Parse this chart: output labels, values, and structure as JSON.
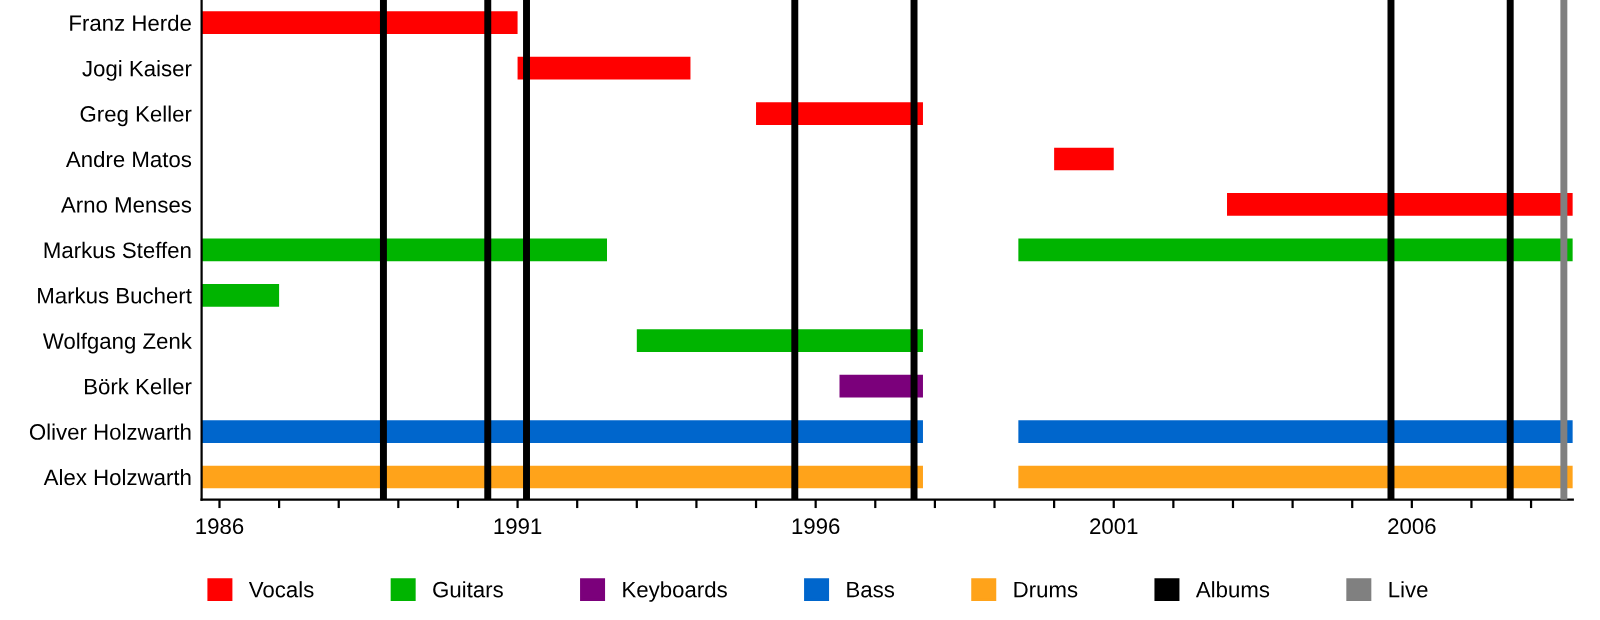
{
  "chart_data": {
    "type": "bar",
    "orientation": "horizontal",
    "categories": [
      "Franz Herde",
      "Jogi Kaiser",
      "Greg Keller",
      "Andre Matos",
      "Arno Menses",
      "Markus Steffen",
      "Markus Buchert",
      "Wolfgang Zenk",
      "Börk Keller",
      "Oliver Holzwarth",
      "Alex Holzwarth"
    ],
    "series": [
      {
        "name": "Vocals",
        "color": "#ff0000",
        "base": [
          1985.7,
          1991.0,
          1995.0,
          2000.0,
          2002.9,
          null,
          null,
          null,
          null,
          null,
          null
        ],
        "values": [
          5.3,
          2.9,
          2.8,
          1.0,
          5.8,
          null,
          null,
          null,
          null,
          null,
          null
        ]
      },
      {
        "name": "Guitars",
        "color": "#00b400",
        "base": [
          null,
          null,
          null,
          null,
          null,
          1985.7,
          1985.7,
          1993.0,
          null,
          null,
          null
        ],
        "values": [
          null,
          null,
          null,
          null,
          null,
          6.8,
          1.3,
          4.8,
          null,
          null,
          null
        ]
      },
      {
        "name": "Keyboards",
        "color": "#7b007b",
        "base": [
          null,
          null,
          null,
          null,
          null,
          null,
          null,
          null,
          1996.4,
          null,
          null
        ],
        "values": [
          null,
          null,
          null,
          null,
          null,
          null,
          null,
          null,
          1.4,
          null,
          null
        ]
      },
      {
        "name": "Bass",
        "color": "#0066cc",
        "base": [
          null,
          null,
          null,
          null,
          null,
          null,
          null,
          null,
          null,
          1985.7,
          null
        ],
        "values": [
          null,
          null,
          null,
          null,
          null,
          null,
          null,
          null,
          null,
          12.1,
          null
        ]
      },
      {
        "name": "Drums",
        "color": "#ffa31a",
        "base": [
          null,
          null,
          null,
          null,
          null,
          null,
          null,
          null,
          null,
          null,
          1985.7
        ],
        "values": [
          null,
          null,
          null,
          null,
          null,
          null,
          null,
          null,
          null,
          null,
          12.1
        ]
      },
      {
        "colors": [
          null,
          null,
          null,
          null,
          null,
          "#00b400",
          null,
          null,
          null,
          "#0066cc",
          "#ffa31a"
        ],
        "base": [
          null,
          null,
          null,
          null,
          null,
          1999.4,
          null,
          null,
          null,
          1999.4,
          1999.4
        ],
        "values": [
          null,
          null,
          null,
          null,
          null,
          9.3,
          null,
          null,
          null,
          9.3,
          9.3
        ]
      }
    ],
    "ref_lines": [
      {
        "axis": "x",
        "value": 1988.75,
        "label": "Albums",
        "color": "#000000"
      },
      {
        "axis": "x",
        "value": 1990.5,
        "color": "#000000"
      },
      {
        "axis": "x",
        "value": 1991.15,
        "color": "#000000"
      },
      {
        "axis": "x",
        "value": 1995.65,
        "color": "#000000"
      },
      {
        "axis": "x",
        "value": 1997.65,
        "color": "#000000"
      },
      {
        "axis": "x",
        "value": 2005.65,
        "color": "#000000"
      },
      {
        "axis": "x",
        "value": 2007.65,
        "color": "#000000"
      },
      {
        "axis": "x",
        "value": 2008.55,
        "label": "Live",
        "color": "#808080"
      }
    ],
    "xlim": [
      1985.7,
      2008.7
    ],
    "xticks": [
      1986,
      {
        "value": 1987,
        "label": null
      },
      {
        "value": 1988,
        "label": null
      },
      {
        "value": 1989,
        "label": null
      },
      {
        "value": 1990,
        "label": null
      },
      1991,
      {
        "value": 1992,
        "label": null
      },
      {
        "value": 1993,
        "label": null
      },
      {
        "value": 1994,
        "label": null
      },
      {
        "value": 1995,
        "label": null
      },
      1996,
      {
        "value": 1997,
        "label": null
      },
      {
        "value": 1998,
        "label": null
      },
      {
        "value": 1999,
        "label": null
      },
      {
        "value": 2000,
        "label": null
      },
      2001,
      {
        "value": 2002,
        "label": null
      },
      {
        "value": 2003,
        "label": null
      },
      {
        "value": 2004,
        "label": null
      },
      {
        "value": 2005,
        "label": null
      },
      2006,
      {
        "value": 2007,
        "label": null
      },
      {
        "value": 2008,
        "label": null
      }
    ],
    "grid": false,
    "legend": "bottom"
  }
}
